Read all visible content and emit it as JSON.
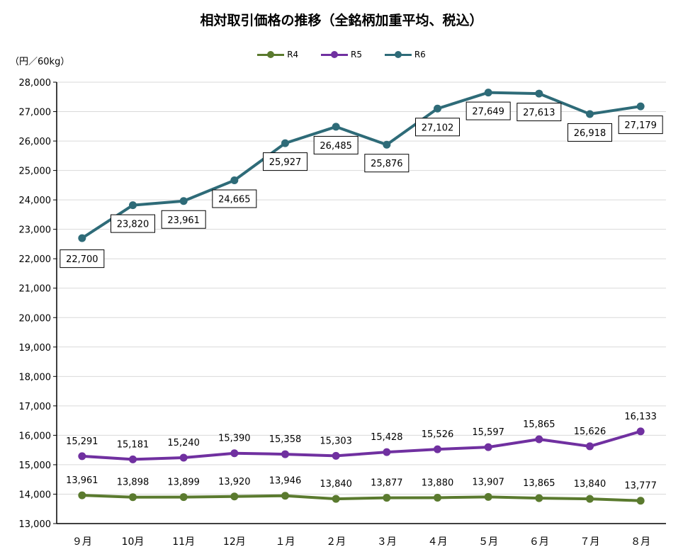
{
  "title": "相対取引価格の推移（全銘柄加重平均、税込）",
  "unit_label": "（円／60kg）",
  "colors": {
    "R4": "#5a7a2e",
    "R5": "#7030a0",
    "R6": "#2e6b78",
    "grid": "#d9d9d9",
    "axis": "#000000"
  },
  "chart_data": {
    "type": "line",
    "categories": [
      "９月",
      "10月",
      "11月",
      "12月",
      "１月",
      "２月",
      "３月",
      "４月",
      "５月",
      "６月",
      "７月",
      "８月"
    ],
    "ylim": [
      13000,
      28000
    ],
    "yticks": [
      "13,000",
      "14,000",
      "15,000",
      "16,000",
      "17,000",
      "18,000",
      "19,000",
      "20,000",
      "21,000",
      "22,000",
      "23,000",
      "24,000",
      "25,000",
      "26,000",
      "27,000",
      "28,000"
    ],
    "ytick_values": [
      13000,
      14000,
      15000,
      16000,
      17000,
      18000,
      19000,
      20000,
      21000,
      22000,
      23000,
      24000,
      25000,
      26000,
      27000,
      28000
    ],
    "grid": true,
    "legend_position": "top",
    "series": [
      {
        "name": "R4",
        "values": [
          13961,
          13898,
          13899,
          13920,
          13946,
          13840,
          13877,
          13880,
          13907,
          13865,
          13840,
          13777
        ],
        "labels": [
          "13,961",
          "13,898",
          "13,899",
          "13,920",
          "13,946",
          "13,840",
          "13,877",
          "13,880",
          "13,907",
          "13,865",
          "13,840",
          "13,777"
        ]
      },
      {
        "name": "R5",
        "values": [
          15291,
          15181,
          15240,
          15390,
          15358,
          15303,
          15428,
          15526,
          15597,
          15865,
          15626,
          16133
        ],
        "labels": [
          "15,291",
          "15,181",
          "15,240",
          "15,390",
          "15,358",
          "15,303",
          "15,428",
          "15,526",
          "15,597",
          "15,865",
          "15,626",
          "16,133"
        ]
      },
      {
        "name": "R6",
        "values": [
          22700,
          23820,
          23961,
          24665,
          25927,
          26485,
          25876,
          27102,
          27649,
          27613,
          26918,
          27179
        ],
        "labels": [
          "22,700",
          "23,820",
          "23,961",
          "24,665",
          "25,927",
          "26,485",
          "25,876",
          "27,102",
          "27,649",
          "27,613",
          "26,918",
          "27,179"
        ]
      }
    ]
  }
}
